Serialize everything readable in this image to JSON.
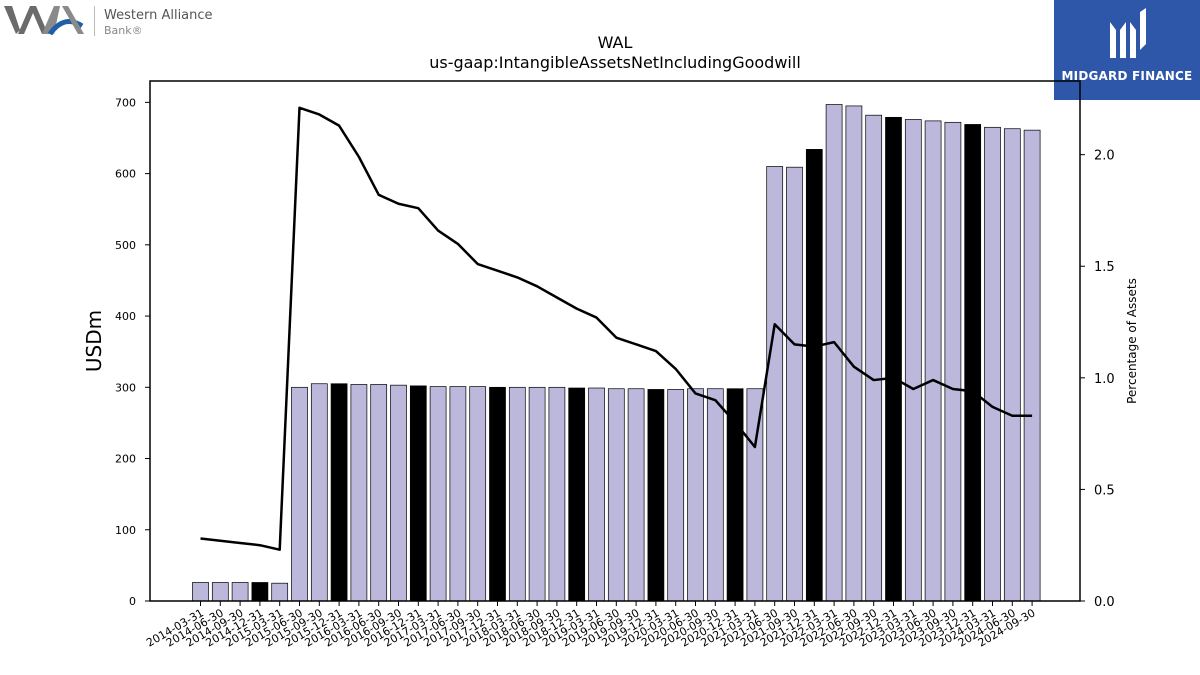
{
  "logo": {
    "company_line1": "Western Alliance",
    "company_line2": "Bank",
    "registered": "®"
  },
  "badge": {
    "name": "MIDGARD FINANCE"
  },
  "chart_data": {
    "type": "bar",
    "title": "WAL",
    "subtitle": "us-gaap:IntangibleAssetsNetIncludingGoodwill",
    "ylabel": "USDm",
    "y2label": "Percentage of Assets",
    "ylim": [
      0,
      730
    ],
    "y2lim": [
      0,
      2.33
    ],
    "yticks": [
      0,
      100,
      200,
      300,
      400,
      500,
      600,
      700
    ],
    "y2ticks": [
      "0.0",
      "0.5",
      "1.0",
      "1.5",
      "2.0"
    ],
    "categories": [
      "2014-03-31",
      "2014-06-30",
      "2014-09-30",
      "2014-12-31",
      "2015-03-31",
      "2015-06-30",
      "2015-09-30",
      "2015-12-31",
      "2016-03-31",
      "2016-06-30",
      "2016-09-30",
      "2016-12-31",
      "2017-03-31",
      "2017-06-30",
      "2017-09-30",
      "2017-12-31",
      "2018-03-31",
      "2018-06-30",
      "2018-09-30",
      "2018-12-31",
      "2019-03-31",
      "2019-06-30",
      "2019-09-30",
      "2019-12-31",
      "2020-03-31",
      "2020-06-30",
      "2020-09-30",
      "2020-12-31",
      "2021-03-31",
      "2021-06-30",
      "2021-09-30",
      "2021-12-31",
      "2022-03-31",
      "2022-06-30",
      "2022-09-30",
      "2022-12-31",
      "2023-03-31",
      "2023-06-30",
      "2023-09-30",
      "2023-12-31",
      "2024-03-31",
      "2024-06-30",
      "2024-09-30"
    ],
    "series": [
      {
        "name": "",
        "axis": "left",
        "kind": "bar",
        "values": [
          26,
          26,
          26,
          26,
          25,
          300,
          305,
          305,
          304,
          304,
          303,
          302,
          301,
          301,
          301,
          300,
          300,
          300,
          300,
          299,
          299,
          298,
          298,
          297,
          297,
          298,
          298,
          298,
          298,
          610,
          609,
          634,
          697,
          695,
          682,
          679,
          676,
          674,
          672,
          669,
          665,
          663,
          661
        ],
        "highlight_color": "#000000",
        "color": "#bcb8dc"
      },
      {
        "name": "",
        "axis": "right",
        "kind": "line",
        "values": [
          0.28,
          0.27,
          0.26,
          0.25,
          0.23,
          2.21,
          2.18,
          2.13,
          1.99,
          1.82,
          1.78,
          1.76,
          1.66,
          1.6,
          1.51,
          1.48,
          1.45,
          1.41,
          1.36,
          1.31,
          1.27,
          1.18,
          1.15,
          1.12,
          1.04,
          0.93,
          0.9,
          0.8,
          0.69,
          1.24,
          1.15,
          1.14,
          1.16,
          1.05,
          0.99,
          1.0,
          0.95,
          0.99,
          0.95,
          0.94,
          0.87,
          0.83,
          0.83
        ],
        "color": "#000000"
      }
    ]
  }
}
